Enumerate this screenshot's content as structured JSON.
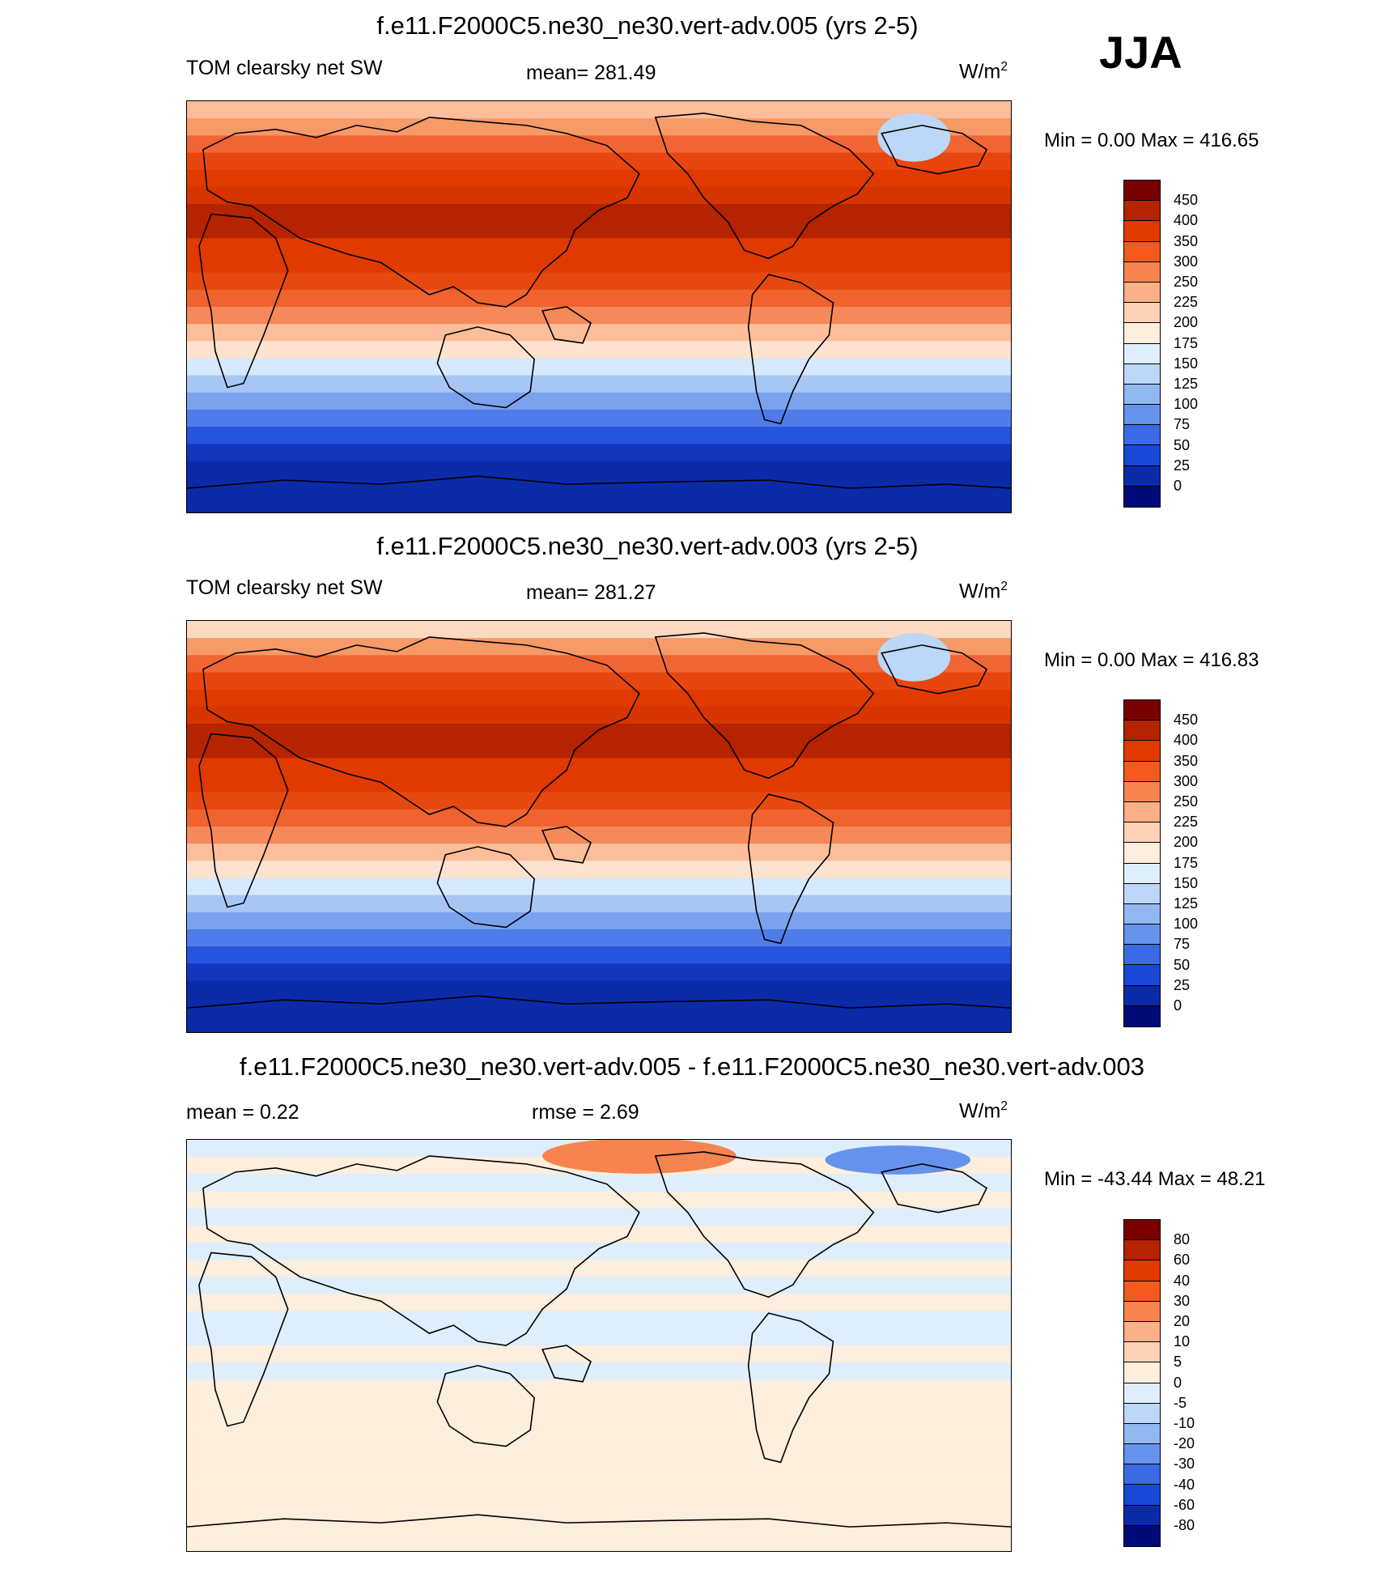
{
  "season": "JJA",
  "panels": [
    {
      "title": "f.e11.F2000C5.ne30_ne30.vert-adv.005 (yrs 2-5)",
      "left_label": "TOM clearsky net SW",
      "center_label": "mean= 281.49",
      "units": "W/m",
      "units_sup": "2",
      "minmax": "Min =    0.00 Max = 416.65",
      "levels": [
        "450",
        "400",
        "350",
        "300",
        "250",
        "225",
        "200",
        "175",
        "150",
        "125",
        "100",
        "75",
        "50",
        "25",
        "0"
      ],
      "colors": [
        "#7a0000",
        "#b52300",
        "#e03a00",
        "#f25a1e",
        "#f7844e",
        "#fbb08a",
        "#fdd2b7",
        "#fdeedd",
        "#deeefc",
        "#bcd7f7",
        "#92b7f1",
        "#6592ec",
        "#3b6ae5",
        "#1947d6",
        "#0a2aa8",
        "#000b78"
      ],
      "stripes": [
        "#fbbd9a",
        "#f69a68",
        "#f06534",
        "#e8460f",
        "#e03a00",
        "#d63500",
        "#b52300",
        "#b52300",
        "#e03a00",
        "#e03a00",
        "#e64910",
        "#f0622e",
        "#f5895a",
        "#fbbd9a",
        "#fde2cf",
        "#d6e8fb",
        "#a8c6f3",
        "#7aa2ed",
        "#4f7cea",
        "#2554df",
        "#1435bd",
        "#0a2aa8",
        "#0a2aa8",
        "#0a2aa8"
      ]
    },
    {
      "title": "f.e11.F2000C5.ne30_ne30.vert-adv.003 (yrs 2-5)",
      "left_label": "TOM clearsky net SW",
      "center_label": "mean= 281.27",
      "units": "W/m",
      "units_sup": "2",
      "minmax": "Min =    0.00 Max = 416.83",
      "levels": [
        "450",
        "400",
        "350",
        "300",
        "250",
        "225",
        "200",
        "175",
        "150",
        "125",
        "100",
        "75",
        "50",
        "25",
        "0"
      ],
      "colors": [
        "#7a0000",
        "#b52300",
        "#e03a00",
        "#f25a1e",
        "#f7844e",
        "#fbb08a",
        "#fdd2b7",
        "#fdeedd",
        "#deeefc",
        "#bcd7f7",
        "#92b7f1",
        "#6592ec",
        "#3b6ae5",
        "#1947d6",
        "#0a2aa8",
        "#000b78"
      ],
      "stripes": [
        "#fdd9c2",
        "#f69a68",
        "#f06534",
        "#e8460f",
        "#e03a00",
        "#d63500",
        "#b52300",
        "#b52300",
        "#e03a00",
        "#e03a00",
        "#e64910",
        "#f0622e",
        "#f5895a",
        "#fbbd9a",
        "#fde2cf",
        "#d6e8fb",
        "#a8c6f3",
        "#7aa2ed",
        "#4f7cea",
        "#2554df",
        "#1435bd",
        "#0a2aa8",
        "#0a2aa8",
        "#0a2aa8"
      ]
    },
    {
      "title": "f.e11.F2000C5.ne30_ne30.vert-adv.005 - f.e11.F2000C5.ne30_ne30.vert-adv.003",
      "left_label": "mean =   0.22",
      "center_label": "rmse =   2.69",
      "units": "W/m",
      "units_sup": "2",
      "minmax": "Min = -43.44 Max =  48.21",
      "levels": [
        "80",
        "60",
        "40",
        "30",
        "20",
        "10",
        "5",
        "0",
        "-5",
        "-10",
        "-20",
        "-30",
        "-40",
        "-60",
        "-80"
      ],
      "colors": [
        "#7a0000",
        "#b52300",
        "#e03a00",
        "#f25a1e",
        "#f7844e",
        "#fbb08a",
        "#fdd2b7",
        "#fdeedd",
        "#deeefc",
        "#bcd7f7",
        "#92b7f1",
        "#6592ec",
        "#3b6ae5",
        "#1947d6",
        "#0a2aa8",
        "#000b78"
      ],
      "stripes": [
        "#deeefc",
        "#fdeedd",
        "#deeefc",
        "#fdeedd",
        "#deeefc",
        "#fdeedd",
        "#deeefc",
        "#fdeedd",
        "#deeefc",
        "#fdeedd",
        "#deeefc",
        "#deeefc",
        "#fdeedd",
        "#deeefc",
        "#fdeedd",
        "#fdeedd",
        "#fdeedd",
        "#fdeedd",
        "#fdeedd",
        "#fdeedd",
        "#fdeedd",
        "#fdeedd",
        "#fdeedd",
        "#fdeedd"
      ]
    }
  ]
}
